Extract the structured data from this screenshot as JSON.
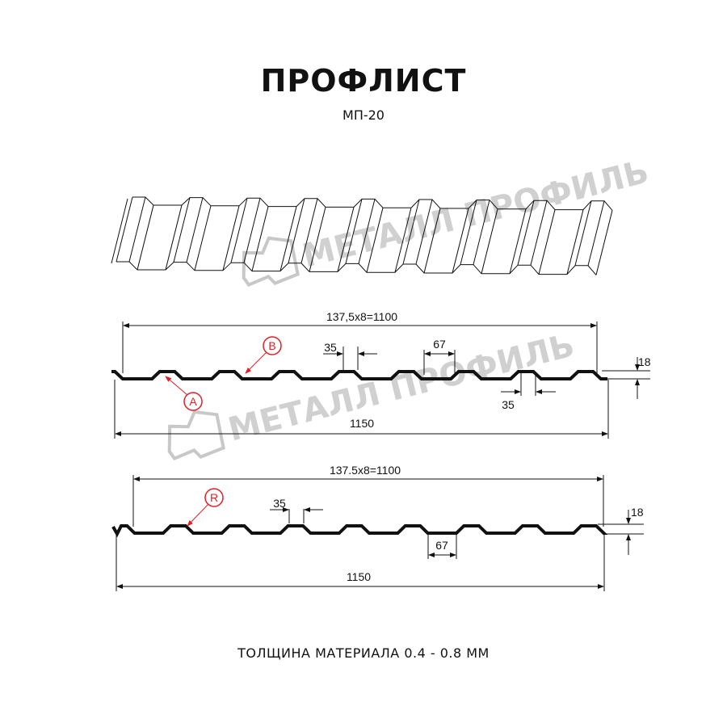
{
  "header": {
    "title": "ПРОФЛИСТ",
    "subtitle": "МП-20"
  },
  "watermark": {
    "text": "МЕТАЛЛ ПРОФИЛЬ"
  },
  "profile_a": {
    "pitch_label": "137,5x8=1100",
    "total_width_label": "1150",
    "top_flat_label": "35",
    "bottom_flat_label": "67",
    "height_label": "18",
    "second_top_flat_label": "35",
    "callouts": [
      "B",
      "A"
    ]
  },
  "profile_r": {
    "pitch_label": "137.5x8=1100",
    "total_width_label": "1150",
    "top_flat_label": "35",
    "bottom_flat_label": "67",
    "height_label": "18",
    "callouts": [
      "R"
    ]
  },
  "footer": {
    "thickness": "ТОЛЩИНА МАТЕРИАЛА 0.4 - 0.8 ММ"
  },
  "colors": {
    "line": "#111111",
    "callout": "#e31e24",
    "watermark": "#c8c8c8"
  }
}
